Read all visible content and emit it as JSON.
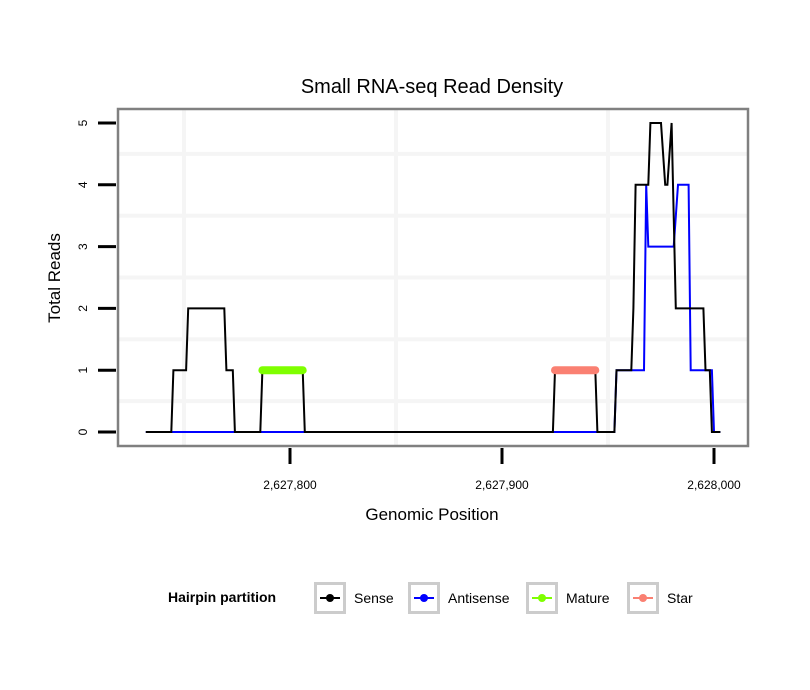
{
  "chart_data": {
    "type": "line",
    "title": "Small RNA-seq Read Density",
    "xlabel": "Genomic Position",
    "ylabel": "Total Reads",
    "xlim": [
      2627720,
      2628015
    ],
    "ylim": [
      -0.25,
      5.25
    ],
    "x_ticks": [
      2627800,
      2627900,
      2628000
    ],
    "x_tick_labels": [
      "2,627,800",
      "2,627,900",
      "2,628,000"
    ],
    "y_ticks": [
      0,
      1,
      2,
      3,
      4,
      5
    ],
    "y_tick_labels": [
      "0",
      "1",
      "2",
      "3",
      "4",
      "5"
    ],
    "grid": true,
    "legend": {
      "position": "bottom",
      "title": "Hairpin partition",
      "entries": [
        {
          "name": "Sense",
          "color": "#000000"
        },
        {
          "name": "Antisense",
          "color": "#0000ff"
        },
        {
          "name": "Mature",
          "color": "#7fff00"
        },
        {
          "name": "Star",
          "color": "#fa8072"
        }
      ]
    },
    "series": [
      {
        "name": "Antisense",
        "color": "#0000ff",
        "points": [
          [
            2627732,
            0
          ],
          [
            2627953,
            0
          ],
          [
            2627954,
            1
          ],
          [
            2627967,
            1
          ],
          [
            2627968,
            4
          ],
          [
            2627969,
            3
          ],
          [
            2627981,
            3
          ],
          [
            2627983,
            4
          ],
          [
            2627988,
            4
          ],
          [
            2627989,
            1
          ],
          [
            2627999,
            1
          ],
          [
            2628000,
            0
          ],
          [
            2628003,
            0
          ]
        ]
      },
      {
        "name": "Sense",
        "color": "#000000",
        "points": [
          [
            2627732,
            0
          ],
          [
            2627744,
            0
          ],
          [
            2627745,
            1
          ],
          [
            2627751,
            1
          ],
          [
            2627752,
            2
          ],
          [
            2627769,
            2
          ],
          [
            2627770,
            1
          ],
          [
            2627773,
            1
          ],
          [
            2627774,
            0
          ],
          [
            2627786,
            0
          ],
          [
            2627787,
            1
          ],
          [
            2627806,
            1
          ],
          [
            2627807,
            0
          ],
          [
            2627924,
            0
          ],
          [
            2627925,
            1
          ],
          [
            2627944,
            1
          ],
          [
            2627945,
            0
          ],
          [
            2627953,
            0
          ],
          [
            2627954,
            1
          ],
          [
            2627961,
            1
          ],
          [
            2627962,
            2
          ],
          [
            2627963,
            4
          ],
          [
            2627969,
            4
          ],
          [
            2627970,
            5
          ],
          [
            2627975,
            5
          ],
          [
            2627977,
            4
          ],
          [
            2627978,
            4
          ],
          [
            2627980,
            5
          ],
          [
            2627982,
            2
          ],
          [
            2627995,
            2
          ],
          [
            2627996,
            1
          ],
          [
            2627998,
            1
          ],
          [
            2627999,
            0
          ],
          [
            2628003,
            0
          ]
        ]
      },
      {
        "name": "Mature",
        "color": "#7fff00",
        "points": [
          [
            2627787,
            1
          ],
          [
            2627806,
            1
          ]
        ]
      },
      {
        "name": "Star",
        "color": "#fa8072",
        "points": [
          [
            2627925,
            1
          ],
          [
            2627944,
            1
          ]
        ]
      }
    ]
  }
}
